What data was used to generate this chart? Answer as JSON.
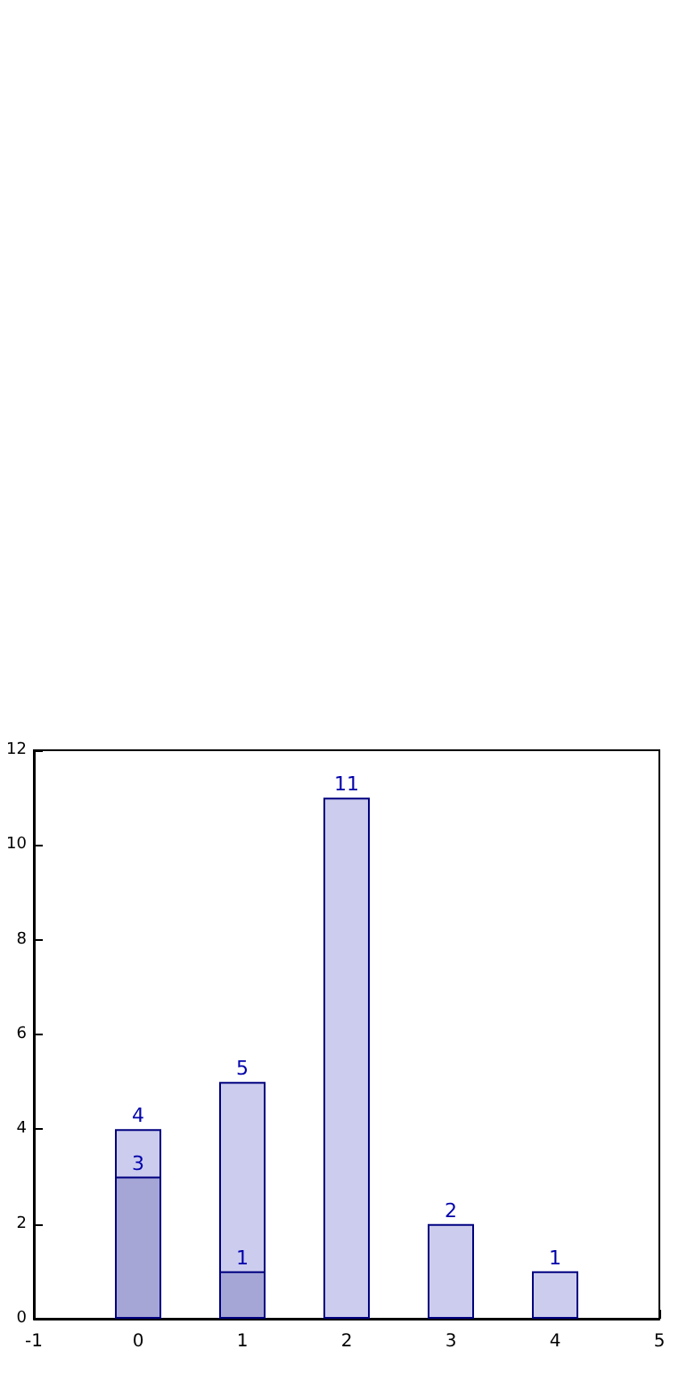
{
  "chart_data": {
    "type": "bar",
    "x": [
      0,
      1,
      2,
      3,
      4
    ],
    "series": [
      {
        "color": "#ccccee",
        "values": [
          4,
          5,
          11,
          2,
          1
        ]
      },
      {
        "color": "#a6a6d6",
        "values": [
          3,
          1,
          null,
          null,
          null
        ]
      }
    ],
    "xlim": [
      -1,
      5
    ],
    "xticks": [
      -1,
      0,
      1,
      2,
      3,
      4,
      5
    ],
    "ylim": [
      0,
      12
    ],
    "yticks": [
      0,
      2,
      4,
      6,
      8,
      10,
      12
    ],
    "data_labels": true
  }
}
